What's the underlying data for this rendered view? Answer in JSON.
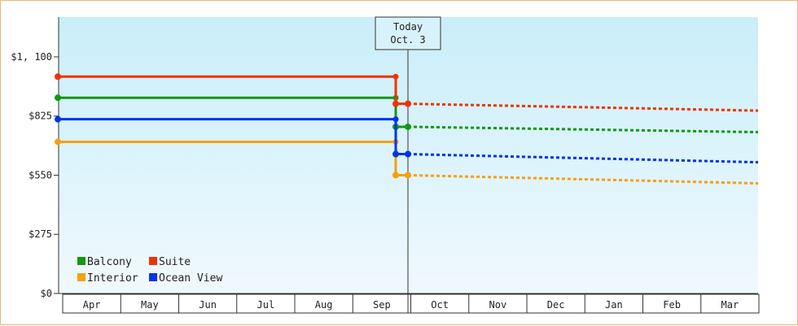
{
  "chart_data": {
    "type": "line",
    "title": "",
    "xlabel": "",
    "ylabel": "",
    "x_categories": [
      "Apr",
      "May",
      "Jun",
      "Jul",
      "Aug",
      "Sep",
      "Oct",
      "Nov",
      "Dec",
      "Jan",
      "Feb",
      "Mar"
    ],
    "y_ticks": [
      "$0",
      "$275",
      "$550",
      "$825",
      "$1, 100"
    ],
    "y_tick_values": [
      0,
      275,
      550,
      825,
      1100
    ],
    "ylim": [
      0,
      1285
    ],
    "grid": false,
    "legend_position": "bottom-left",
    "today_marker": {
      "line1": "Today",
      "line2": "Oct. 3"
    },
    "series": [
      {
        "name": "Balcony",
        "color": "#119911",
        "past_value": 910,
        "today_value": 775,
        "forecast_end_value": 750
      },
      {
        "name": "Suite",
        "color": "#ee3300",
        "past_value": 1008,
        "today_value": 882,
        "forecast_end_value": 850
      },
      {
        "name": "Interior",
        "color": "#f5a011",
        "past_value": 705,
        "today_value": 550,
        "forecast_end_value": 512
      },
      {
        "name": "Ocean View",
        "color": "#0033ee",
        "past_value": 810,
        "today_value": 648,
        "forecast_end_value": 610
      }
    ]
  }
}
